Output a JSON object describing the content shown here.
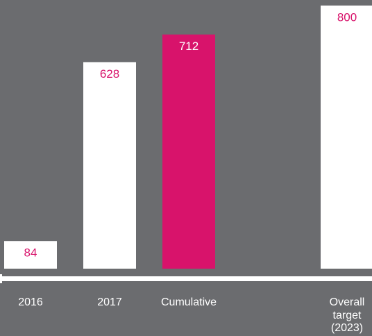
{
  "chart_data": {
    "type": "bar",
    "categories": [
      "2016",
      "2017",
      "Cumulative",
      "Overall target (2023)"
    ],
    "values": [
      84,
      628,
      712,
      800
    ],
    "colors": [
      "#ffffff",
      "#ffffff",
      "#d8136b",
      "#ffffff"
    ],
    "label_colors": [
      "#d8136b",
      "#d8136b",
      "#ffffff",
      "#d8136b"
    ],
    "axis_color": "#ffffff"
  }
}
